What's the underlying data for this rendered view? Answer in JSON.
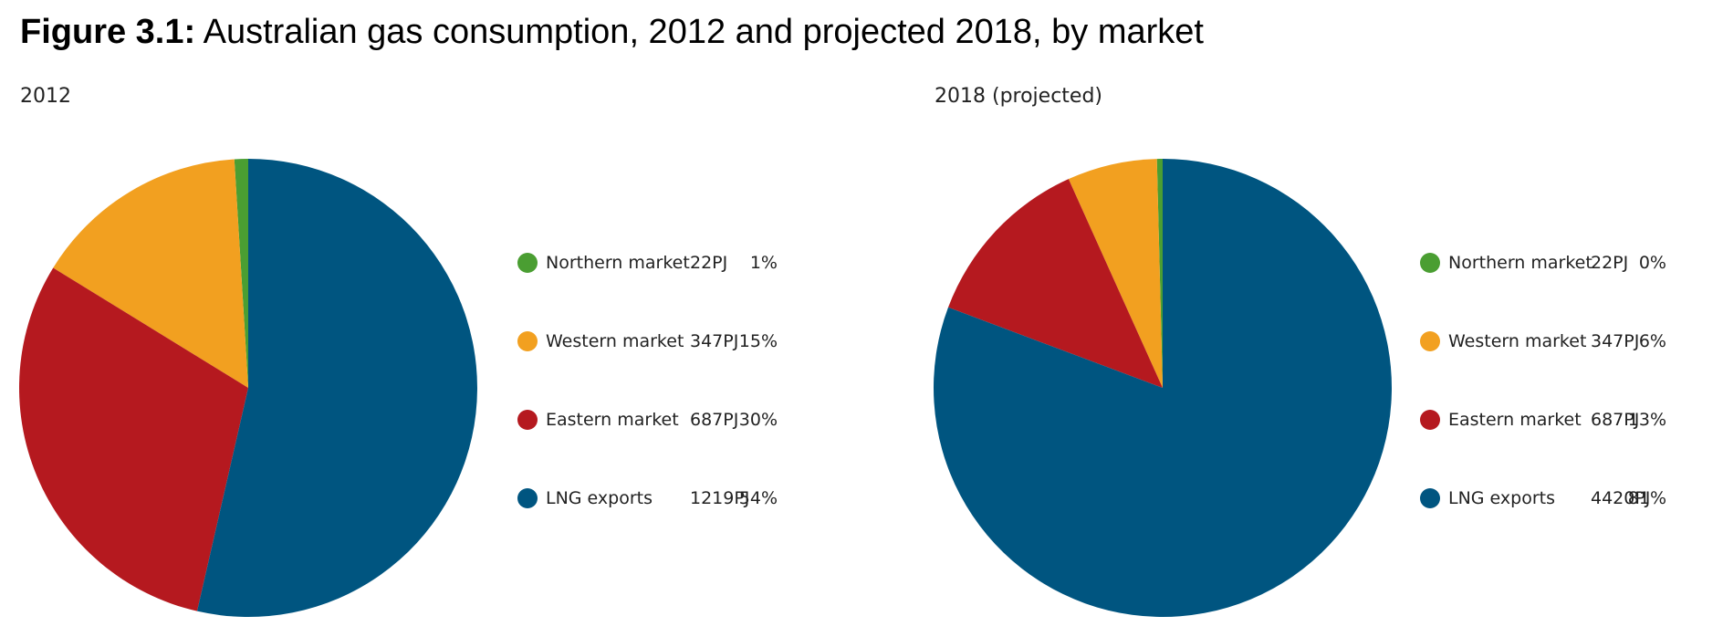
{
  "title": {
    "prefix": "Figure 3.1:",
    "text": "Australian gas consumption, 2012 and projected 2018, by market"
  },
  "colors": {
    "Northern market": "#4a9e32",
    "Western market": "#f2a020",
    "Eastern market": "#b5191f",
    "LNG exports": "#005580"
  },
  "chart_data": [
    {
      "type": "pie",
      "title": "2012",
      "categories": [
        "Northern market",
        "Western market",
        "Eastern market",
        "LNG exports"
      ],
      "values": [
        22,
        347,
        687,
        1219
      ],
      "value_labels": [
        "22PJ",
        "347PJ",
        "687PJ",
        "1219PJ"
      ],
      "percent_labels": [
        "1%",
        "15%",
        "30%",
        "54%"
      ],
      "unit": "PJ",
      "legend": "right"
    },
    {
      "type": "pie",
      "title": "2018 (projected)",
      "categories": [
        "Northern market",
        "Western market",
        "Eastern market",
        "LNG exports"
      ],
      "values": [
        22,
        347,
        687,
        4420
      ],
      "value_labels": [
        "22PJ",
        "347PJ",
        "687PJ",
        "4420PJ"
      ],
      "percent_labels": [
        "0%",
        "6%",
        "13%",
        "81%"
      ],
      "unit": "PJ",
      "legend": "right"
    }
  ]
}
